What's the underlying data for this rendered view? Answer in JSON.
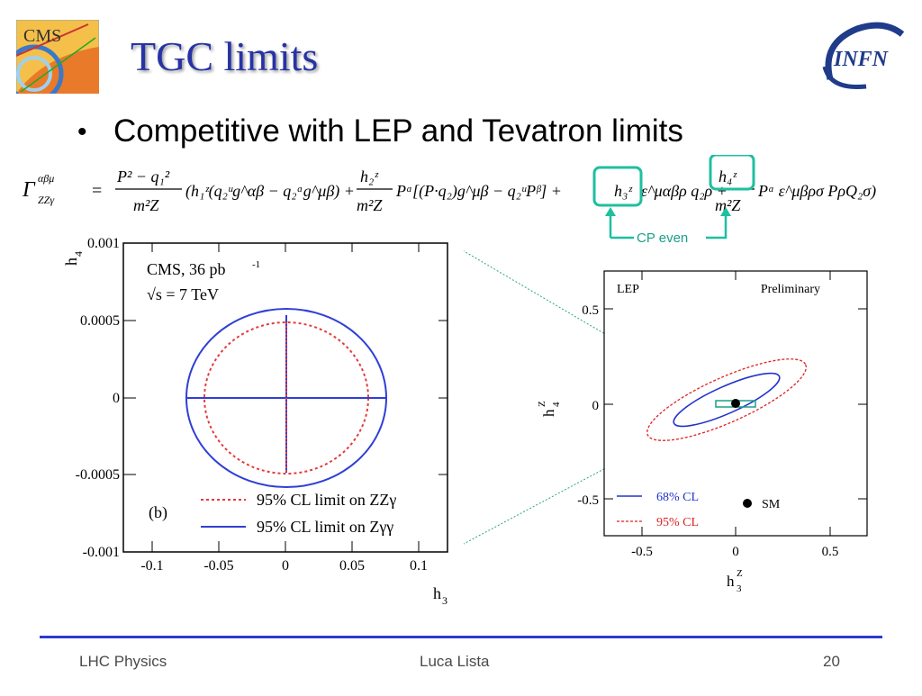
{
  "slide": {
    "title": "TGC limits",
    "bullet": "Competitive with LEP and Tevatron limits",
    "cp_label": "CP even"
  },
  "formula": {
    "lhs": "Γ",
    "lhs_sup": "αβμ",
    "lhs_sub": "ZZγ",
    "terms": {
      "frac1_num": "P² − q₁²",
      "frac1_den": "m²Z",
      "part1": "(h₁ᶻ(q₂ᵘg^αβ − q₂ᵅg^μβ) +",
      "frac2_num": "h₂ᶻ",
      "frac2_den": "m²Z",
      "part2": "Pᵅ[(P·q₂)g^μβ − q₂ᵘPᵝ] +",
      "h3": "h₃ᶻ",
      "part3": "ε^μαβρ q₂ρ +",
      "h4": "h₄ᶻ",
      "frac3_den": "m²Z",
      "part4": "Pᵅ ε^μβρσ PρQ₂σ)"
    }
  },
  "left_plot": {
    "text_lines": [
      "CMS, 36 pb",
      "√s = 7 TeV",
      "(b)"
    ],
    "text_sup": "-1",
    "legend": [
      {
        "label": "95% CL limit on ZZγ",
        "color": "#e33b3b",
        "style": "dotted"
      },
      {
        "label": "95% CL limit on Zγγ",
        "color": "#2f3fd6",
        "style": "solid"
      }
    ],
    "xlabel": "h",
    "xlabel_sub": "3",
    "ylabel": "h",
    "ylabel_sub": "4",
    "x_ticks": [
      "-0.1",
      "-0.05",
      "0",
      "0.05",
      "0.1"
    ],
    "y_ticks": [
      "0.001",
      "0.0005",
      "0",
      "-0.0005",
      "-0.001"
    ]
  },
  "right_plot": {
    "corner_left": "LEP",
    "corner_right": "Preliminary",
    "legend": [
      {
        "label": "68% CL",
        "color": "#2233cc",
        "style": "solid"
      },
      {
        "label": "95% CL",
        "color": "#dd2222",
        "style": "dotted"
      }
    ],
    "sm_label": "SM",
    "x_ticks": [
      "-0.5",
      "0",
      "0.5"
    ],
    "y_ticks": [
      "0.5",
      "0",
      "-0.5"
    ],
    "xlabel": "h",
    "xlabel_sup": "Z",
    "xlabel_sub": "3",
    "ylabel": "h",
    "ylabel_sup": "Z",
    "ylabel_sub": "4"
  },
  "footer": {
    "left": "LHC Physics",
    "center": "Luca Lista",
    "right": "20"
  },
  "logos": {
    "left_text": "CMS",
    "right_text": "INFN"
  },
  "colors": {
    "title": "#2733a5",
    "accent_teal": "#1fbf9f",
    "footer_line": "#2c3bcf"
  }
}
